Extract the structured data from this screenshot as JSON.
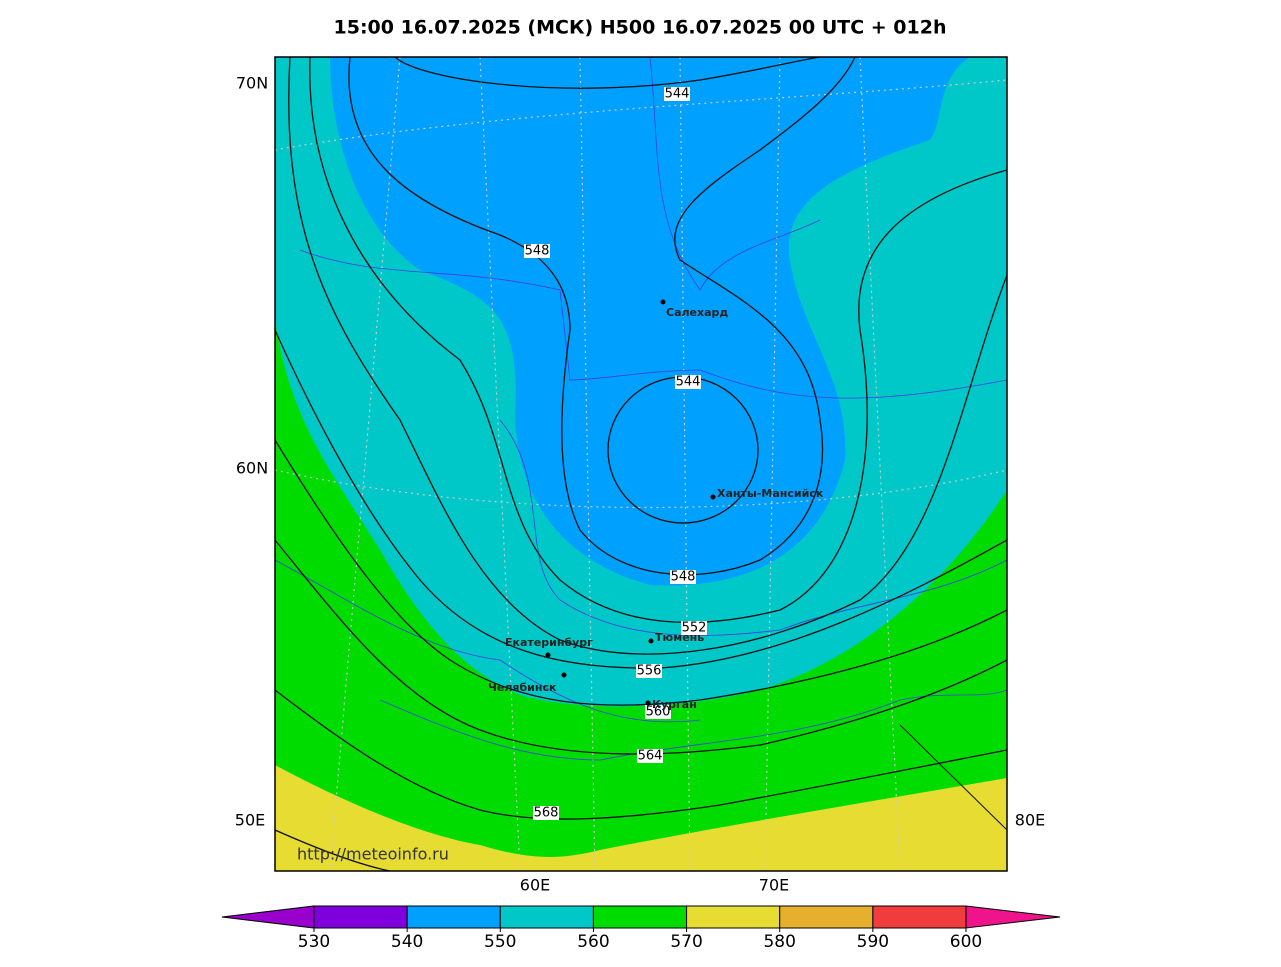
{
  "title": "15:00 16.07.2025 (МСК) H500  16.07.2025 00 UTC + 012h",
  "lat_labels": [
    "70N",
    "60N"
  ],
  "lon_labels_side": [
    "50E",
    "80E"
  ],
  "lon_labels_bottom": [
    "60E",
    "70E"
  ],
  "contour_labels": [
    544,
    548,
    544,
    548,
    552,
    556,
    560,
    564,
    568
  ],
  "cities": [
    "Салехард",
    "Ханты-Мансийск",
    "Екатеринбург",
    "Тюмень",
    "Челябинск",
    "Курган"
  ],
  "watermark": "http://meteoinfo.ru",
  "colorbar": {
    "ticks": [
      530,
      540,
      550,
      560,
      570,
      580,
      590,
      600
    ],
    "colors": [
      "#9900cc",
      "#8000dd",
      "#00a0ff",
      "#00c8c8",
      "#00dc00",
      "#e6dc32",
      "#e6af2d",
      "#f03c3c",
      "#f0148c"
    ]
  }
}
